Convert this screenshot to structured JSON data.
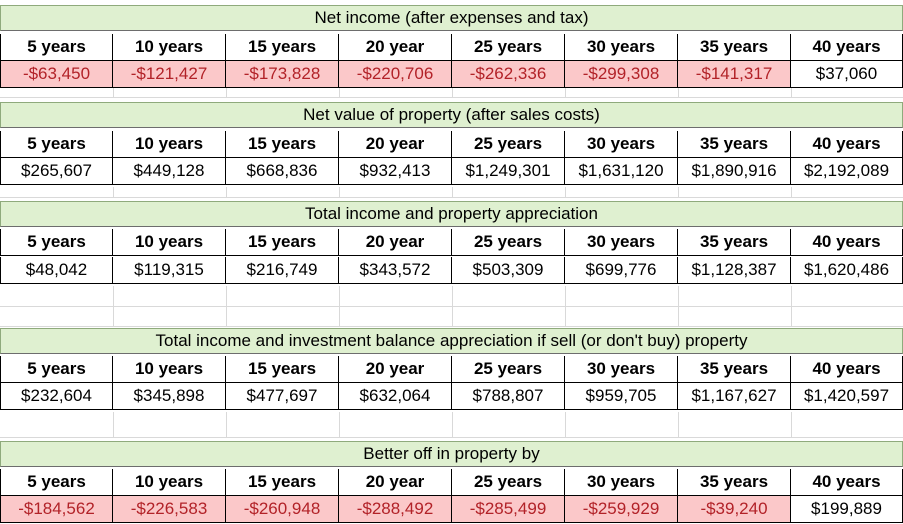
{
  "headers": [
    "5 years",
    "10 years",
    "15 years",
    "20 year",
    "25 years",
    "30 years",
    "35 years",
    "40 years"
  ],
  "sections": [
    {
      "title": "Net income (after expenses and tax)",
      "values": [
        "-$63,450",
        "-$121,427",
        "-$173,828",
        "-$220,706",
        "-$262,336",
        "-$299,308",
        "-$141,317",
        "$37,060"
      ]
    },
    {
      "title": "Net value of property (after sales costs)",
      "values": [
        "$265,607",
        "$449,128",
        "$668,836",
        "$932,413",
        "$1,249,301",
        "$1,631,120",
        "$1,890,916",
        "$2,192,089"
      ]
    },
    {
      "title": "Total income and property appreciation",
      "values": [
        "$48,042",
        "$119,315",
        "$216,749",
        "$343,572",
        "$503,309",
        "$699,776",
        "$1,128,387",
        "$1,620,486"
      ]
    },
    {
      "title": "Total income and investment balance appreciation if sell (or don't buy) property",
      "values": [
        "$232,604",
        "$345,898",
        "$477,697",
        "$632,064",
        "$788,807",
        "$959,705",
        "$1,167,627",
        "$1,420,597"
      ]
    },
    {
      "title": "Better off in property by",
      "values": [
        "-$184,562",
        "-$226,583",
        "-$260,948",
        "-$288,492",
        "-$285,499",
        "-$259,929",
        "-$39,240",
        "$199,889"
      ]
    }
  ],
  "colors": {
    "header_fill": "#dff0d0",
    "negative_fill": "#fbc8c9",
    "negative_text": "#b22228"
  }
}
